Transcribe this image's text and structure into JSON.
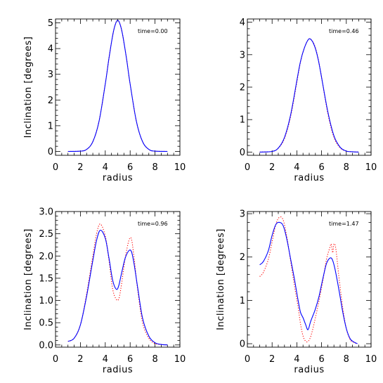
{
  "colors": {
    "solid": "#0000ff",
    "dotted": "#ff0000",
    "axes": "#000000"
  },
  "chart_data": [
    {
      "type": "line",
      "annotation": "time=0.00",
      "xlabel": "radius",
      "ylabel": "Inclination [degrees]",
      "xlim": [
        0,
        10
      ],
      "ylim": [
        -0.15,
        5.15
      ],
      "xticks": [
        0,
        2,
        4,
        6,
        8,
        10
      ],
      "yticks": [
        0,
        1,
        2,
        3,
        4,
        5
      ],
      "yticklabels": [
        "0",
        "1",
        "2",
        "3",
        "4",
        "5"
      ],
      "series": [
        {
          "style": "solid",
          "color": "#0000ff",
          "x": [
            1.0,
            2.0,
            2.5,
            3.0,
            3.5,
            4.0,
            4.3,
            4.6,
            4.8,
            5.0,
            5.2,
            5.4,
            5.7,
            6.0,
            6.5,
            7.0,
            7.5,
            8.0,
            9.0
          ],
          "y": [
            0,
            0.01,
            0.08,
            0.38,
            1.17,
            2.62,
            3.63,
            4.52,
            4.93,
            5.1,
            4.93,
            4.52,
            3.63,
            2.62,
            1.17,
            0.38,
            0.08,
            0.01,
            0
          ]
        },
        {
          "style": "dotted",
          "color": "#ff0000",
          "x": [
            1.0,
            2.0,
            2.5,
            3.0,
            3.5,
            4.0,
            4.3,
            4.6,
            4.8,
            5.0,
            5.2,
            5.4,
            5.7,
            6.0,
            6.5,
            7.0,
            7.5,
            8.0,
            9.0
          ],
          "y": [
            0,
            0.01,
            0.08,
            0.38,
            1.17,
            2.62,
            3.63,
            4.52,
            4.93,
            5.1,
            4.93,
            4.52,
            3.63,
            2.62,
            1.17,
            0.38,
            0.08,
            0.01,
            0
          ]
        }
      ]
    },
    {
      "type": "line",
      "annotation": "time=0.46",
      "xlabel": "radius",
      "ylabel": "",
      "xlim": [
        0,
        10
      ],
      "ylim": [
        -0.1,
        4.1
      ],
      "xticks": [
        0,
        2,
        4,
        6,
        8,
        10
      ],
      "yticks": [
        0,
        1,
        2,
        3,
        4
      ],
      "yticklabels": [
        "0",
        "1",
        "2",
        "3",
        "4"
      ],
      "series": [
        {
          "style": "solid",
          "color": "#0000ff",
          "x": [
            1.0,
            2.0,
            2.5,
            3.0,
            3.5,
            4.0,
            4.3,
            4.6,
            4.9,
            5.1,
            5.4,
            5.7,
            6.0,
            6.5,
            7.0,
            7.5,
            8.0,
            8.5,
            9.0
          ],
          "y": [
            0,
            0.02,
            0.12,
            0.45,
            1.15,
            2.2,
            2.8,
            3.2,
            3.45,
            3.48,
            3.3,
            2.9,
            2.3,
            1.25,
            0.5,
            0.15,
            0.03,
            0.01,
            0
          ]
        },
        {
          "style": "dotted",
          "color": "#ff0000",
          "x": [
            1.0,
            2.0,
            2.5,
            3.0,
            3.5,
            4.0,
            4.3,
            4.6,
            4.9,
            5.1,
            5.4,
            5.7,
            6.0,
            6.5,
            7.0,
            7.5,
            8.0,
            8.5,
            9.0
          ],
          "y": [
            0,
            0.02,
            0.12,
            0.42,
            1.1,
            2.15,
            2.78,
            3.2,
            3.45,
            3.48,
            3.32,
            2.92,
            2.3,
            1.2,
            0.45,
            0.13,
            0.03,
            0.01,
            0
          ]
        }
      ]
    },
    {
      "type": "line",
      "annotation": "time=0.96",
      "xlabel": "radius",
      "ylabel": "Inclination [degrees]",
      "xlim": [
        0,
        10
      ],
      "ylim": [
        -0.05,
        3.0
      ],
      "xticks": [
        0,
        2,
        4,
        6,
        8,
        10
      ],
      "yticks": [
        0,
        0.5,
        1.0,
        1.5,
        2.0,
        2.5,
        3.0
      ],
      "yticklabels": [
        "0.0",
        "0.5",
        "1.0",
        "1.5",
        "2.0",
        "2.5",
        "3.0"
      ],
      "series": [
        {
          "style": "solid",
          "color": "#0000ff",
          "x": [
            1.0,
            1.5,
            2.0,
            2.5,
            3.0,
            3.3,
            3.6,
            4.0,
            4.3,
            4.6,
            4.9,
            5.1,
            5.3,
            5.6,
            5.9,
            6.1,
            6.3,
            6.6,
            7.0,
            7.5,
            8.0,
            8.5,
            9.0
          ],
          "y": [
            0.08,
            0.15,
            0.45,
            1.1,
            1.9,
            2.35,
            2.58,
            2.4,
            1.95,
            1.45,
            1.25,
            1.35,
            1.6,
            1.95,
            2.12,
            2.1,
            1.85,
            1.3,
            0.6,
            0.2,
            0.05,
            0.01,
            0
          ]
        },
        {
          "style": "dotted",
          "color": "#ff0000",
          "x": [
            1.0,
            1.5,
            2.0,
            2.5,
            3.0,
            3.3,
            3.6,
            4.0,
            4.3,
            4.6,
            4.9,
            5.1,
            5.3,
            5.6,
            5.9,
            6.1,
            6.3,
            6.6,
            7.0,
            7.5,
            8.0,
            8.5,
            9.0
          ],
          "y": [
            0.08,
            0.15,
            0.45,
            1.15,
            2.0,
            2.5,
            2.72,
            2.45,
            1.9,
            1.25,
            1.02,
            1.05,
            1.35,
            1.95,
            2.35,
            2.38,
            2.0,
            1.25,
            0.5,
            0.15,
            0.03,
            0.01,
            0
          ]
        }
      ]
    },
    {
      "type": "line",
      "annotation": "time=1.47",
      "xlabel": "radius",
      "ylabel": "Inclination [degrees]",
      "xlim": [
        0,
        10
      ],
      "ylim": [
        -0.08,
        3.05
      ],
      "xticks": [
        0,
        2,
        4,
        6,
        8,
        10
      ],
      "yticks": [
        0,
        1,
        2,
        3
      ],
      "yticklabels": [
        "0",
        "1",
        "2",
        "3"
      ],
      "series": [
        {
          "style": "solid",
          "color": "#0000ff",
          "x": [
            1.0,
            1.3,
            1.7,
            2.0,
            2.3,
            2.6,
            2.9,
            3.2,
            3.5,
            3.8,
            4.1,
            4.3,
            4.5,
            4.7,
            4.9,
            5.1,
            5.3,
            5.5,
            5.8,
            6.1,
            6.4,
            6.7,
            6.9,
            7.1,
            7.4,
            7.7,
            8.0,
            8.3,
            8.6,
            8.9
          ],
          "y": [
            1.82,
            1.9,
            2.15,
            2.5,
            2.75,
            2.8,
            2.72,
            2.4,
            1.95,
            1.5,
            1.0,
            0.72,
            0.6,
            0.45,
            0.32,
            0.5,
            0.65,
            0.8,
            1.1,
            1.5,
            1.85,
            1.98,
            1.92,
            1.7,
            1.25,
            0.75,
            0.35,
            0.12,
            0.04,
            0.0
          ]
        },
        {
          "style": "dotted",
          "color": "#ff0000",
          "x": [
            1.0,
            1.3,
            1.7,
            2.0,
            2.3,
            2.6,
            2.9,
            3.2,
            3.5,
            3.8,
            4.1,
            4.3,
            4.5,
            4.7,
            4.9,
            5.1,
            5.3,
            5.5,
            5.8,
            6.1,
            6.4,
            6.65,
            6.78,
            6.9,
            7.0,
            7.15,
            7.4,
            7.7,
            8.0,
            8.3,
            8.6,
            8.9
          ],
          "y": [
            1.55,
            1.65,
            1.95,
            2.35,
            2.75,
            2.92,
            2.85,
            2.45,
            1.9,
            1.35,
            0.85,
            0.45,
            0.18,
            0.06,
            0.05,
            0.15,
            0.35,
            0.6,
            1.0,
            1.45,
            1.95,
            2.2,
            2.3,
            2.1,
            2.3,
            2.2,
            1.55,
            0.85,
            0.35,
            0.1,
            0.03,
            0.0
          ]
        }
      ]
    }
  ]
}
